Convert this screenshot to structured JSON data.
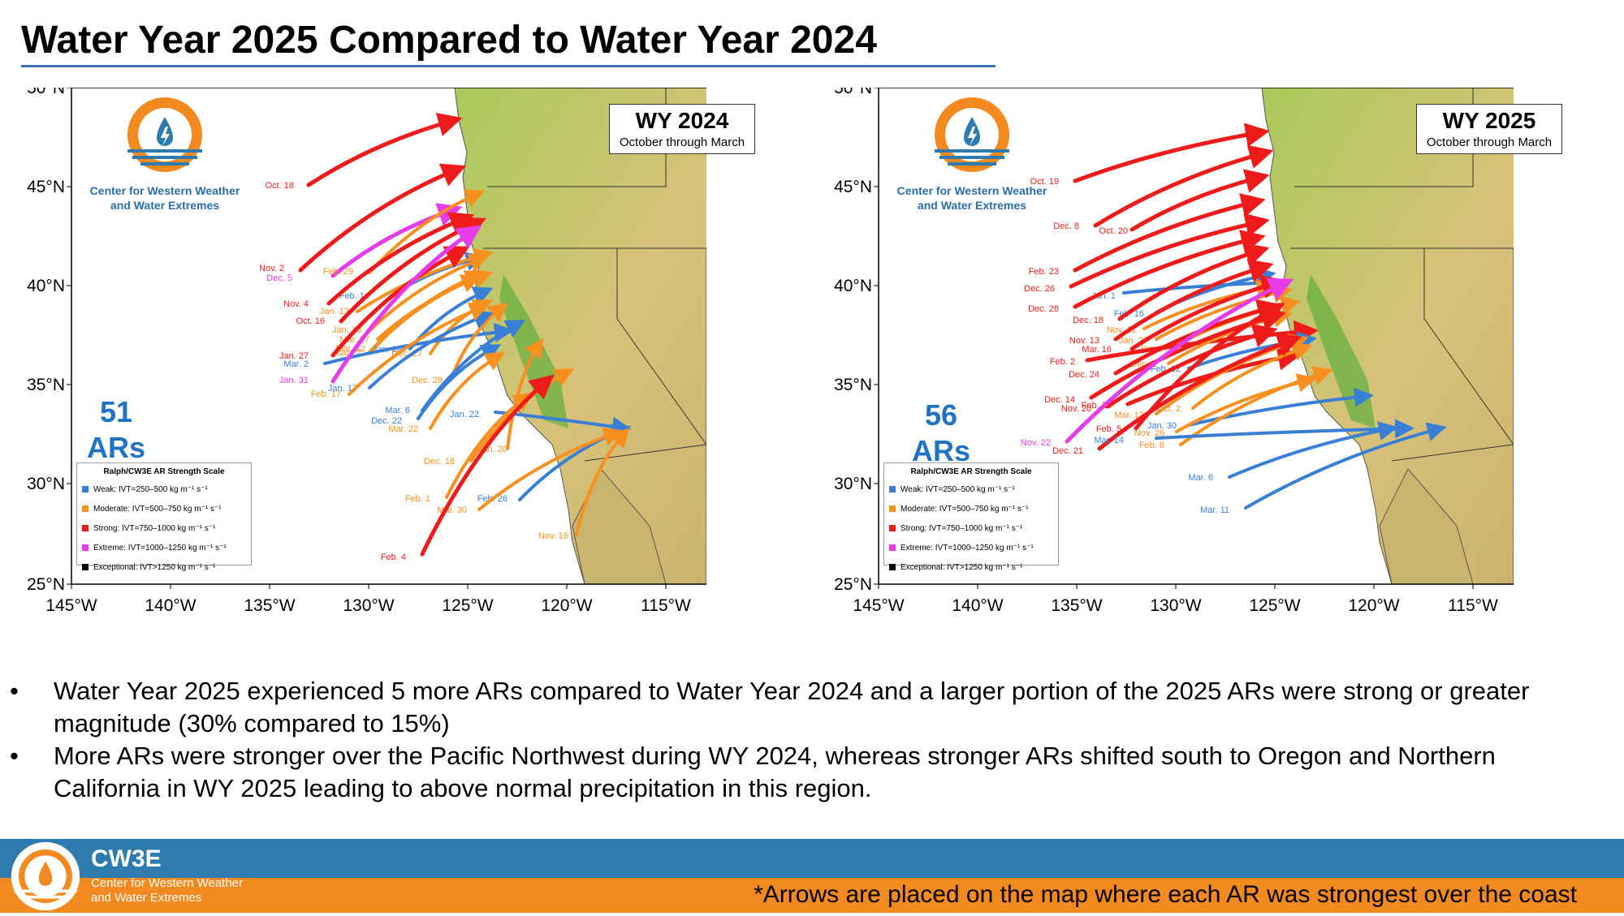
{
  "title": "Water Year 2025 Compared to Water Year 2024",
  "org": {
    "name_line1": "Center for Western Weather",
    "name_line2": "and Water Extremes"
  },
  "axes": {
    "lat_labels": [
      "50°N",
      "45°N",
      "40°N",
      "35°N",
      "30°N",
      "25°N"
    ],
    "lon_labels": [
      "145°W",
      "140°W",
      "135°W",
      "130°W",
      "125°W",
      "120°W",
      "115°W",
      "110°W"
    ]
  },
  "legend": {
    "title": "Ralph/CW3E AR Strength Scale",
    "items": [
      {
        "label": "Weak: IVT=250–500 kg m⁻¹ s⁻¹",
        "color": "#3a7fd6"
      },
      {
        "label": "Moderate: IVT=500–750 kg m⁻¹ s⁻¹",
        "color": "#f7901e"
      },
      {
        "label": "Strong: IVT=750–1000 kg m⁻¹ s⁻¹",
        "color": "#ef1b1b"
      },
      {
        "label": "Extreme: IVT=1000–1250 kg m⁻¹ s⁻¹",
        "color": "#e63be8"
      },
      {
        "label": "Exceptional: IVT>1250 kg m⁻¹ s⁻¹",
        "color": "#000000"
      }
    ]
  },
  "colors": {
    "weak": "#3a7fd6",
    "moderate": "#f7901e",
    "strong": "#ef1b1b",
    "extreme": "#e63be8",
    "title_rule": "#3f6fb8",
    "footer_blue": "#2e7bb0",
    "footer_orange": "#f28a1f",
    "count_blue": "#1f73c2"
  },
  "maps": [
    {
      "wy_title": "WY 2024",
      "wy_sub": "October through March",
      "count_number": "51",
      "count_unit": "ARs",
      "ars": [
        {
          "label": "Oct. 18",
          "color": "strong"
        },
        {
          "label": "Nov. 2",
          "color": "strong"
        },
        {
          "label": "Dec. 5",
          "color": "extreme"
        },
        {
          "label": "Feb. 29",
          "color": "moderate"
        },
        {
          "label": "Feb. 14",
          "color": "weak"
        },
        {
          "label": "Nov. 4",
          "color": "strong"
        },
        {
          "label": "Jan. 13",
          "color": "moderate"
        },
        {
          "label": "Oct. 16",
          "color": "strong"
        },
        {
          "label": "Jan. 10",
          "color": "moderate"
        },
        {
          "label": "Mar. 27",
          "color": "moderate"
        },
        {
          "label": "Mar. 12",
          "color": "moderate"
        },
        {
          "label": "Jan. 27",
          "color": "strong"
        },
        {
          "label": "Jan. 2",
          "color": "moderate"
        },
        {
          "label": "Jan. 24",
          "color": "weak"
        },
        {
          "label": "Dec. 27",
          "color": "moderate"
        },
        {
          "label": "Mar. 2",
          "color": "weak"
        },
        {
          "label": "Jan. 31",
          "color": "extreme"
        },
        {
          "label": "Dec. 29",
          "color": "moderate"
        },
        {
          "label": "Jan. 17",
          "color": "weak"
        },
        {
          "label": "Feb. 17",
          "color": "moderate"
        },
        {
          "label": "Mar. 6",
          "color": "weak"
        },
        {
          "label": "Dec. 22",
          "color": "weak"
        },
        {
          "label": "Mar. 22",
          "color": "moderate"
        },
        {
          "label": "Jan. 22",
          "color": "weak"
        },
        {
          "label": "Jan. 20",
          "color": "moderate"
        },
        {
          "label": "Dec. 18",
          "color": "moderate"
        },
        {
          "label": "Feb. 1",
          "color": "moderate"
        },
        {
          "label": "Feb. 26",
          "color": "weak"
        },
        {
          "label": "Mar. 30",
          "color": "moderate"
        },
        {
          "label": "Nov. 16",
          "color": "moderate"
        },
        {
          "label": "Feb. 4",
          "color": "strong"
        }
      ]
    },
    {
      "wy_title": "WY 2025",
      "wy_sub": "October through March",
      "count_number": "56",
      "count_unit": "ARs",
      "ars": [
        {
          "label": "Oct. 19",
          "color": "strong"
        },
        {
          "label": "Dec. 8",
          "color": "strong"
        },
        {
          "label": "Oct. 20",
          "color": "strong"
        },
        {
          "label": "Feb. 23",
          "color": "strong"
        },
        {
          "label": "Dec. 26",
          "color": "strong"
        },
        {
          "label": "Jan. 1",
          "color": "weak"
        },
        {
          "label": "Dec. 28",
          "color": "strong"
        },
        {
          "label": "Feb. 16",
          "color": "weak"
        },
        {
          "label": "Dec. 18",
          "color": "strong"
        },
        {
          "label": "Nov. 11",
          "color": "moderate"
        },
        {
          "label": "Nov. 13",
          "color": "strong"
        },
        {
          "label": "Jan. 27",
          "color": "moderate"
        },
        {
          "label": "Mar. 16",
          "color": "strong"
        },
        {
          "label": "Jan. 27",
          "color": "moderate"
        },
        {
          "label": "Feb. 2",
          "color": "strong"
        },
        {
          "label": "Dec. 2",
          "color": "moderate"
        },
        {
          "label": "Feb. 12",
          "color": "weak"
        },
        {
          "label": "Dec. 24",
          "color": "strong"
        },
        {
          "label": "Dec. 14",
          "color": "strong"
        },
        {
          "label": "Nov. 20",
          "color": "strong"
        },
        {
          "label": "Feb. 14",
          "color": "strong"
        },
        {
          "label": "Mar. 12",
          "color": "moderate"
        },
        {
          "label": "Oct. 2",
          "color": "moderate"
        },
        {
          "label": "Jan. 30",
          "color": "weak"
        },
        {
          "label": "Feb. 5",
          "color": "strong"
        },
        {
          "label": "Nov. 26",
          "color": "moderate"
        },
        {
          "label": "Nov. 22",
          "color": "extreme"
        },
        {
          "label": "Dec. 21",
          "color": "strong"
        },
        {
          "label": "Feb. 6",
          "color": "moderate"
        },
        {
          "label": "Mar. 14",
          "color": "weak"
        },
        {
          "label": "Mar. 6",
          "color": "weak"
        },
        {
          "label": "Mar. 11",
          "color": "weak"
        }
      ]
    }
  ],
  "bullets": [
    "Water Year 2025 experienced 5 more ARs compared to Water Year 2024 and a larger portion of the 2025 ARs were strong or greater magnitude (30% compared to 15%)",
    "More ARs were stronger over the Pacific Northwest during WY 2024, whereas stronger ARs shifted south to Oregon and Northern California in WY 2025 leading to above normal precipitation in this region."
  ],
  "bullet_mark": "•",
  "footer": {
    "name": "CW3E",
    "sub_line1": "Center for Western Weather",
    "sub_line2": "and Water Extremes",
    "note": "*Arrows are placed on the map where each AR was strongest over the coast"
  }
}
